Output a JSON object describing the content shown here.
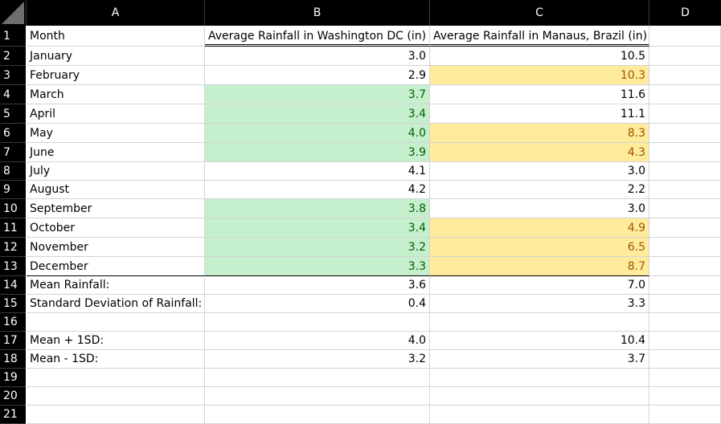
{
  "columns": [
    "A",
    "B",
    "C",
    "D"
  ],
  "rows": [
    {
      "num": "1",
      "a": "Month",
      "b": "Average Rainfall in Washington DC (in)",
      "c": "Average Rainfall in Manaus, Brazil (in)"
    },
    {
      "num": "2",
      "a": "January",
      "b": "3.0",
      "c": "10.5"
    },
    {
      "num": "3",
      "a": "February",
      "b": "2.9",
      "c": "10.3"
    },
    {
      "num": "4",
      "a": "March",
      "b": "3.7",
      "c": "11.6"
    },
    {
      "num": "5",
      "a": "April",
      "b": "3.4",
      "c": "11.1"
    },
    {
      "num": "6",
      "a": "May",
      "b": "4.0",
      "c": "8.3"
    },
    {
      "num": "7",
      "a": "June",
      "b": "3.9",
      "c": "4.3"
    },
    {
      "num": "8",
      "a": "July",
      "b": "4.1",
      "c": "3.0"
    },
    {
      "num": "9",
      "a": "August",
      "b": "4.2",
      "c": "2.2"
    },
    {
      "num": "10",
      "a": "September",
      "b": "3.8",
      "c": "3.0"
    },
    {
      "num": "11",
      "a": "October",
      "b": "3.4",
      "c": "4.9"
    },
    {
      "num": "12",
      "a": "November",
      "b": "3.2",
      "c": "6.5"
    },
    {
      "num": "13",
      "a": "December",
      "b": "3.3",
      "c": "8.7"
    },
    {
      "num": "14",
      "a": "Mean Rainfall:",
      "b": "3.6",
      "c": "7.0"
    },
    {
      "num": "15",
      "a": "Standard Deviation of Rainfall:",
      "b": "0.4",
      "c": "3.3"
    },
    {
      "num": "16",
      "a": "",
      "b": "",
      "c": ""
    },
    {
      "num": "17",
      "a": "Mean + 1SD:",
      "b": "4.0",
      "c": "10.4"
    },
    {
      "num": "18",
      "a": "Mean - 1SD:",
      "b": "3.2",
      "c": "3.7"
    },
    {
      "num": "19",
      "a": "",
      "b": "",
      "c": ""
    },
    {
      "num": "20",
      "a": "",
      "b": "",
      "c": ""
    },
    {
      "num": "21",
      "a": "",
      "b": "",
      "c": ""
    }
  ],
  "colors": {
    "highlight_green_fill": "#c6efce",
    "highlight_green_text": "#006100",
    "highlight_yellow_fill": "#ffeb9c",
    "highlight_yellow_text": "#9c5700"
  },
  "highlights": {
    "green_B_rows": [
      4,
      5,
      6,
      7,
      10,
      11,
      12,
      13
    ],
    "yellow_C_rows": [
      3,
      6,
      7,
      11,
      12,
      13
    ]
  }
}
